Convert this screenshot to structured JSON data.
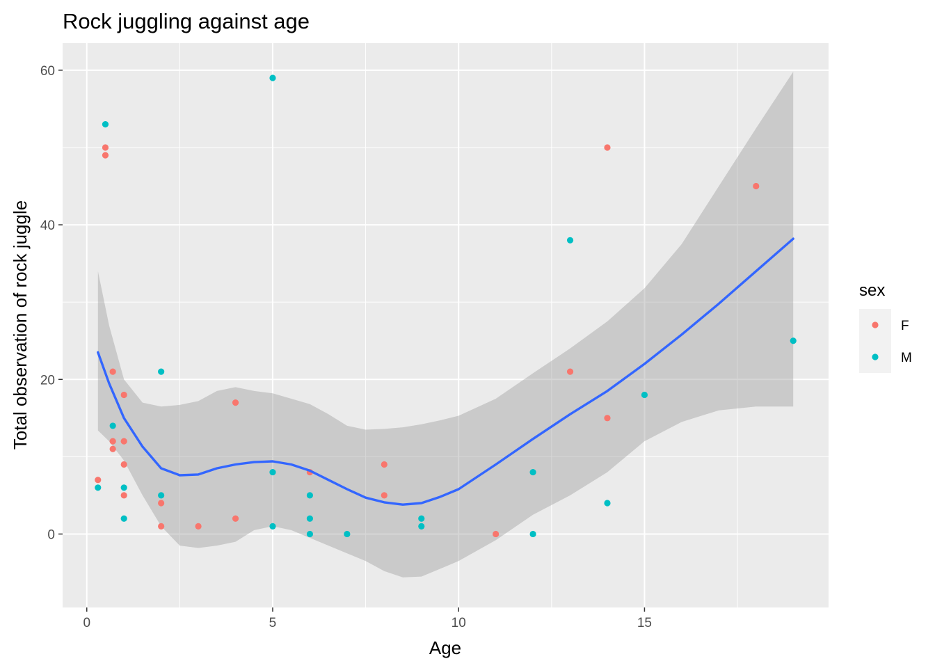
{
  "chart_data": {
    "type": "scatter",
    "title": "Rock juggling against age",
    "xlabel": "Age",
    "ylabel": "Total observation of rock juggle",
    "xlim": [
      -0.65,
      19.95
    ],
    "ylim": [
      -9.5,
      63.5
    ],
    "x_ticks": [
      0,
      5,
      10,
      15
    ],
    "y_ticks": [
      0,
      20,
      40,
      60
    ],
    "grid": true,
    "legend": {
      "title": "sex",
      "placement": "right"
    },
    "series": [
      {
        "name": "F",
        "color": "#F8766D",
        "points": [
          [
            0.3,
            7
          ],
          [
            0.5,
            50
          ],
          [
            0.5,
            49
          ],
          [
            0.7,
            21
          ],
          [
            0.7,
            12
          ],
          [
            0.7,
            11
          ],
          [
            1,
            18
          ],
          [
            1,
            12
          ],
          [
            1,
            9
          ],
          [
            1,
            5
          ],
          [
            2,
            4
          ],
          [
            2,
            1
          ],
          [
            3,
            1
          ],
          [
            4,
            17
          ],
          [
            4,
            2
          ],
          [
            6,
            8
          ],
          [
            8,
            9
          ],
          [
            8,
            5
          ],
          [
            11,
            0
          ],
          [
            13,
            21
          ],
          [
            14,
            50
          ],
          [
            14,
            15
          ],
          [
            18,
            45
          ]
        ]
      },
      {
        "name": "M",
        "color": "#00BFC4",
        "points": [
          [
            0.3,
            6
          ],
          [
            0.5,
            53
          ],
          [
            0.7,
            14
          ],
          [
            1,
            6
          ],
          [
            1,
            2
          ],
          [
            2,
            21
          ],
          [
            2,
            5
          ],
          [
            5,
            59
          ],
          [
            5,
            8
          ],
          [
            5,
            1
          ],
          [
            6,
            5
          ],
          [
            6,
            2
          ],
          [
            6,
            0
          ],
          [
            7,
            0
          ],
          [
            9,
            2
          ],
          [
            9,
            1
          ],
          [
            12,
            8
          ],
          [
            12,
            0
          ],
          [
            13,
            38
          ],
          [
            14,
            4
          ],
          [
            15,
            18
          ],
          [
            19,
            25
          ]
        ]
      }
    ],
    "smooth": {
      "method": "loess",
      "color": "#3366FF",
      "x": [
        0.3,
        0.6,
        1.0,
        1.5,
        2.0,
        2.5,
        3.0,
        3.5,
        4.0,
        4.5,
        5.0,
        5.5,
        6.0,
        6.5,
        7.0,
        7.5,
        8.0,
        8.5,
        9.0,
        9.5,
        10.0,
        11.0,
        12.0,
        13.0,
        14.0,
        15.0,
        16.0,
        17.0,
        18.0,
        19.0
      ],
      "y": [
        23.5,
        19.5,
        15.0,
        11.3,
        8.5,
        7.6,
        7.7,
        8.5,
        9.0,
        9.3,
        9.4,
        9.0,
        8.2,
        7.0,
        5.8,
        4.7,
        4.1,
        3.8,
        4.0,
        4.8,
        5.8,
        9.0,
        12.3,
        15.5,
        18.5,
        22.0,
        25.8,
        29.8,
        34.0,
        38.2
      ],
      "ci_lower": [
        13.4,
        12.0,
        9.5,
        5.0,
        1.0,
        -1.5,
        -1.8,
        -1.5,
        -1.0,
        0.5,
        1.0,
        0.5,
        -0.5,
        -1.5,
        -2.5,
        -3.5,
        -4.8,
        -5.6,
        -5.5,
        -4.5,
        -3.5,
        -0.8,
        2.5,
        5.0,
        8.0,
        12.0,
        14.5,
        16.0,
        16.5,
        16.5
      ],
      "ci_upper": [
        34.0,
        27.0,
        20.0,
        17.0,
        16.5,
        16.7,
        17.2,
        18.5,
        19.0,
        18.5,
        18.2,
        17.5,
        16.8,
        15.5,
        14.0,
        13.5,
        13.6,
        13.8,
        14.2,
        14.7,
        15.3,
        17.5,
        20.8,
        24.0,
        27.5,
        31.8,
        37.5,
        45.0,
        52.5,
        59.8
      ]
    }
  }
}
